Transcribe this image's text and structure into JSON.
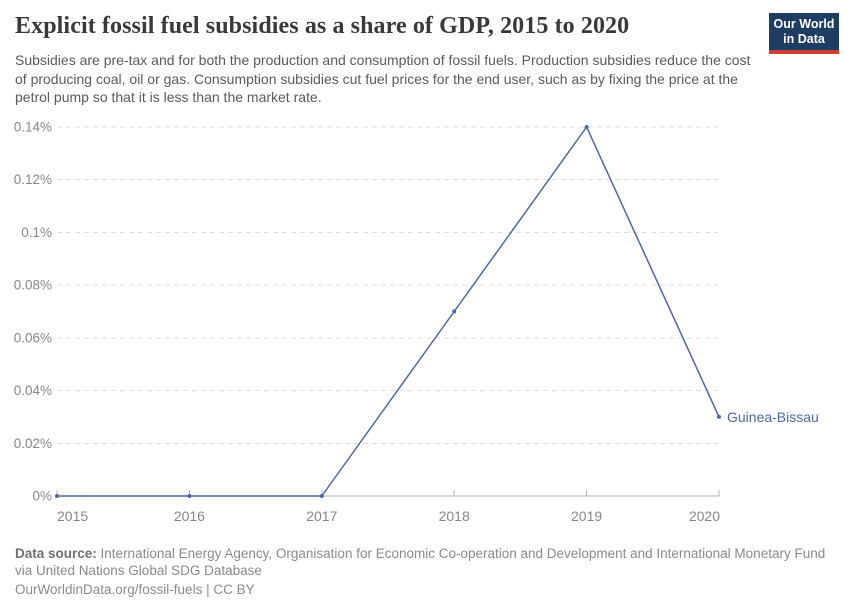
{
  "header": {
    "title": "Explicit fossil fuel subsidies as a share of GDP, 2015 to 2020",
    "subtitle": "Subsidies are pre-tax and for both the production and consumption of fossil fuels. Production subsidies reduce the cost of producing coal, oil or gas. Consumption subsidies cut fuel prices for the end user, such as by fixing the price at the petrol pump so that it is less than the market rate.",
    "logo": {
      "line1": "Our World",
      "line2": "in Data",
      "bg_color": "#1d3d63",
      "accent_color": "#cf3e34"
    }
  },
  "chart_data": {
    "type": "line",
    "title": "Explicit fossil fuel subsidies as a share of GDP, 2015 to 2020",
    "x": [
      2015,
      2016,
      2017,
      2018,
      2019,
      2020
    ],
    "x_tick_labels": [
      "2015",
      "2016",
      "2017",
      "2018",
      "2019",
      "2020"
    ],
    "series": [
      {
        "name": "Guinea-Bissau",
        "color": "#4a69a5",
        "values": [
          0,
          0,
          0,
          0.07,
          0.14,
          0.03
        ]
      }
    ],
    "y_ticks": [
      {
        "value": 0,
        "label": "0%"
      },
      {
        "value": 0.02,
        "label": "0.02%"
      },
      {
        "value": 0.04,
        "label": "0.04%"
      },
      {
        "value": 0.06,
        "label": "0.06%"
      },
      {
        "value": 0.08,
        "label": "0.08%"
      },
      {
        "value": 0.1,
        "label": "0.1%"
      },
      {
        "value": 0.12,
        "label": "0.12%"
      },
      {
        "value": 0.14,
        "label": "0.14%"
      }
    ],
    "xlim": [
      2015,
      2020
    ],
    "ylim": [
      0,
      0.14
    ],
    "unit": "%",
    "grid": "horizontal-dashed",
    "legend_position": "line-end-label",
    "colors": {
      "gridline": "#dedede",
      "axis": "#b3b3b3",
      "tick_label": "#878787"
    }
  },
  "footer": {
    "data_source_label": "Data source:",
    "data_source_text": "International Energy Agency, Organisation for Economic Co-operation and Development and International Monetary Fund via United Nations Global SDG Database",
    "link_line": "OurWorldinData.org/fossil-fuels | CC BY"
  }
}
